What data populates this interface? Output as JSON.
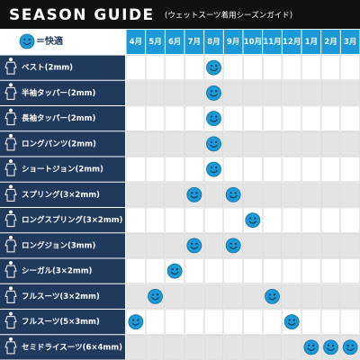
{
  "header": {
    "title": "SEASON GUIDE",
    "subtitle": "(ウェットスーツ着用シーズンガイド)"
  },
  "legend": {
    "label": "＝快適"
  },
  "table": {
    "months": [
      "4月",
      "5月",
      "6月",
      "7月",
      "8月",
      "9月",
      "10月",
      "11月",
      "12月",
      "1月",
      "2月",
      "3月"
    ],
    "rows": [
      {
        "label": "ベスト(2mm)",
        "comfortable": [
          false,
          false,
          false,
          false,
          true,
          false,
          false,
          false,
          false,
          false,
          false,
          false
        ]
      },
      {
        "label": "半袖タッパー(2mm)",
        "comfortable": [
          false,
          false,
          false,
          false,
          true,
          false,
          false,
          false,
          false,
          false,
          false,
          false
        ]
      },
      {
        "label": "長袖タッパー(2mm)",
        "comfortable": [
          false,
          false,
          false,
          false,
          true,
          false,
          false,
          false,
          false,
          false,
          false,
          false
        ]
      },
      {
        "label": "ロングパンツ(2mm)",
        "comfortable": [
          false,
          false,
          false,
          false,
          true,
          false,
          false,
          false,
          false,
          false,
          false,
          false
        ]
      },
      {
        "label": "ショートジョン(2mm)",
        "comfortable": [
          false,
          false,
          false,
          false,
          true,
          false,
          false,
          false,
          false,
          false,
          false,
          false
        ]
      },
      {
        "label": "スプリング(3×2mm)",
        "comfortable": [
          false,
          false,
          false,
          true,
          false,
          true,
          false,
          false,
          false,
          false,
          false,
          false
        ]
      },
      {
        "label": "ロングスプリング(3×2mm)",
        "comfortable": [
          false,
          false,
          false,
          false,
          false,
          false,
          true,
          false,
          false,
          false,
          false,
          false
        ]
      },
      {
        "label": "ロングジョン(3mm)",
        "comfortable": [
          false,
          false,
          false,
          true,
          false,
          true,
          false,
          false,
          false,
          false,
          false,
          false
        ]
      },
      {
        "label": "シーガル(3×2mm)",
        "comfortable": [
          false,
          false,
          true,
          false,
          false,
          false,
          false,
          false,
          false,
          false,
          false,
          false
        ]
      },
      {
        "label": "フルスーツ(3×2mm)",
        "comfortable": [
          false,
          true,
          false,
          false,
          false,
          false,
          false,
          true,
          false,
          false,
          false,
          false
        ]
      },
      {
        "label": "フルスーツ(5×3mm)",
        "comfortable": [
          true,
          false,
          false,
          false,
          false,
          false,
          false,
          false,
          true,
          false,
          false,
          false
        ]
      },
      {
        "label": "セミドライスーツ(6×4mm)",
        "comfortable": [
          false,
          false,
          false,
          false,
          false,
          false,
          false,
          false,
          false,
          true,
          true,
          true
        ]
      }
    ]
  }
}
